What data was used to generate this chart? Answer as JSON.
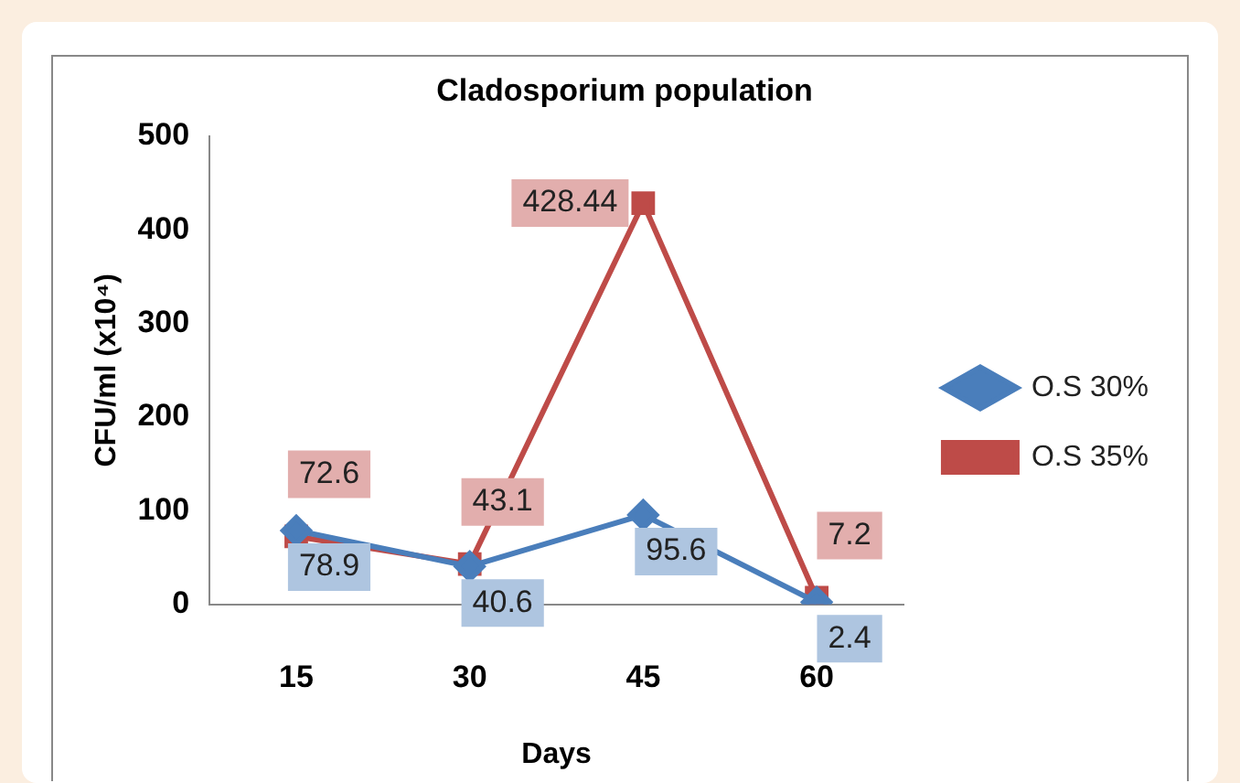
{
  "chart_data": {
    "type": "line",
    "title": "Cladosporium population",
    "xlabel": "Days",
    "ylabel": "CFU/ml (x10⁴)",
    "categories": [
      "15",
      "30",
      "45",
      "60"
    ],
    "series": [
      {
        "name": "O.S 30%",
        "color": "#4a7ebb",
        "marker": "diamond",
        "values": [
          78.9,
          40.6,
          95.6,
          2.4
        ]
      },
      {
        "name": "O.S 35%",
        "color": "#be4b48",
        "marker": "square",
        "values": [
          72.6,
          43.1,
          428.44,
          7.2
        ]
      }
    ],
    "ylim": [
      0,
      500
    ],
    "yticks": [
      0,
      100,
      200,
      300,
      400,
      500
    ],
    "grid": false,
    "legend": "right",
    "data_labels": true
  }
}
